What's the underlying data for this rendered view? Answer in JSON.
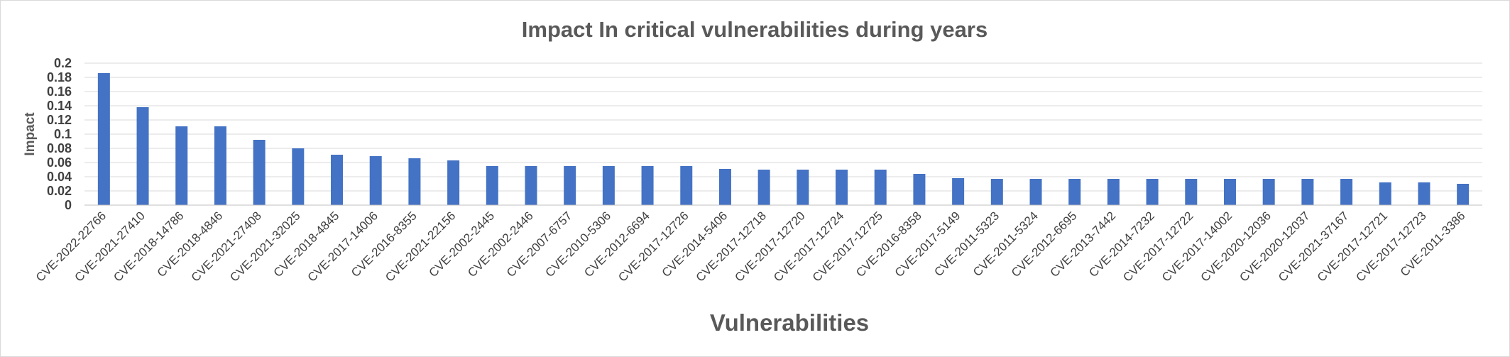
{
  "chart_data": {
    "type": "bar",
    "title": "Impact In critical vulnerabilities during years",
    "xlabel": "Vulnerabilities",
    "ylabel": "Impact",
    "ylim": [
      0,
      0.2
    ],
    "yticks": [
      "0",
      "0.02",
      "0.04",
      "0.06",
      "0.08",
      "0.1",
      "0.12",
      "0.14",
      "0.16",
      "0.18",
      "0.2"
    ],
    "grid": true,
    "bar_color": "#4472C4",
    "categories": [
      "CVE-2022-22766",
      "CVE-2021-27410",
      "CVE-2018-14786",
      "CVE-2018-4846",
      "CVE-2021-27408",
      "CVE-2021-32025",
      "CVE-2018-4845",
      "CVE-2017-14006",
      "CVE-2016-8355",
      "CVE-2021-22156",
      "CVE-2002-2445",
      "CVE-2002-2446",
      "CVE-2007-6757",
      "CVE-2010-5306",
      "CVE-2012-6694",
      "CVE-2017-12726",
      "CVE-2014-5406",
      "CVE-2017-12718",
      "CVE-2017-12720",
      "CVE-2017-12724",
      "CVE-2017-12725",
      "CVE-2016-8358",
      "CVE-2017-5149",
      "CVE-2011-5323",
      "CVE-2011-5324",
      "CVE-2012-6695",
      "CVE-2013-7442",
      "CVE-2014-7232",
      "CVE-2017-12722",
      "CVE-2017-14002",
      "CVE-2020-12036",
      "CVE-2020-12037",
      "CVE-2021-37167",
      "CVE-2017-12721",
      "CVE-2017-12723",
      "CVE-2011-3386"
    ],
    "values": [
      0.186,
      0.138,
      0.111,
      0.111,
      0.092,
      0.08,
      0.071,
      0.069,
      0.066,
      0.063,
      0.055,
      0.055,
      0.055,
      0.055,
      0.055,
      0.055,
      0.051,
      0.05,
      0.05,
      0.05,
      0.05,
      0.044,
      0.038,
      0.037,
      0.037,
      0.037,
      0.037,
      0.037,
      0.037,
      0.037,
      0.037,
      0.037,
      0.037,
      0.032,
      0.032,
      0.03
    ]
  }
}
